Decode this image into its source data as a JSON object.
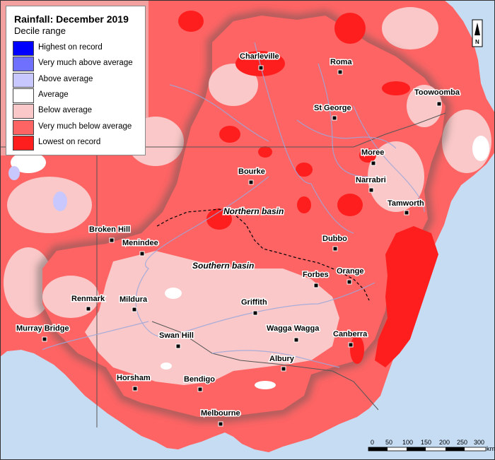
{
  "legend": {
    "title": "Rainfall: December 2019",
    "subtitle": "Decile range",
    "items": [
      {
        "label": "Highest on record",
        "color": "#0000ff"
      },
      {
        "label": "Very much above average",
        "color": "#7070ff"
      },
      {
        "label": "Above average",
        "color": "#c8c8ff"
      },
      {
        "label": "Average",
        "color": "#ffffff"
      },
      {
        "label": "Below average",
        "color": "#fac8c8"
      },
      {
        "label": "Very much below average",
        "color": "#ff6464"
      },
      {
        "label": "Lowest on record",
        "color": "#ff1e1e"
      }
    ]
  },
  "towns": {
    "charleville": "Charleville",
    "roma": "Roma",
    "toowoomba": "Toowoomba",
    "st_george": "St George",
    "moree": "Moree",
    "bourke": "Bourke",
    "narrabri": "Narrabri",
    "tamworth": "Tamworth",
    "broken_hill": "Broken Hill",
    "menindee": "Menindee",
    "dubbo": "Dubbo",
    "forbes": "Forbes",
    "orange": "Orange",
    "renmark": "Renmark",
    "mildura": "Mildura",
    "griffith": "Griffith",
    "murray_bridge": "Murray Bridge",
    "swan_hill": "Swan Hill",
    "wagga_wagga": "Wagga Wagga",
    "canberra": "Canberra",
    "albury": "Albury",
    "horsham": "Horsham",
    "bendigo": "Bendigo",
    "melbourne": "Melbourne"
  },
  "basins": {
    "northern": "Northern basin",
    "southern": "Southern basin"
  },
  "scale_bar": {
    "ticks": [
      "0",
      "50",
      "100",
      "150",
      "200",
      "250",
      "300"
    ],
    "unit": "km"
  },
  "north_arrow": "N",
  "colors": {
    "ocean": "#c5dcf3",
    "outside_basin": "#f2f2f2",
    "highest": "#0000ff",
    "very_much_above": "#7070ff",
    "above": "#c8c8ff",
    "average": "#ffffff",
    "below": "#fac8c8",
    "very_much_below": "#ff6464",
    "lowest": "#ff1e1e",
    "rivers": "#9aa8dc"
  }
}
